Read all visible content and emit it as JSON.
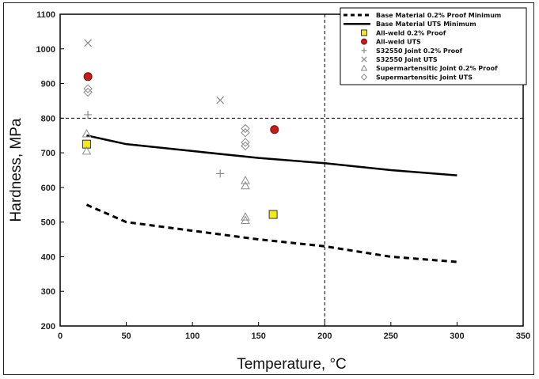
{
  "chart_data": {
    "type": "scatter",
    "xlabel": "Temperature, °C",
    "ylabel": "Hardness, MPa",
    "xlim": [
      0,
      350
    ],
    "ylim": [
      200,
      1100
    ],
    "xticks": [
      0,
      50,
      100,
      150,
      200,
      250,
      300,
      350
    ],
    "yticks": [
      200,
      300,
      400,
      500,
      600,
      700,
      800,
      900,
      1000,
      1100
    ],
    "grid": "dashed at x=200 and y=800",
    "legend_position": "top-right",
    "colors": {
      "axis": "#000000",
      "red": "#c81c1c",
      "yellow": "#f2ea1c",
      "gray": "#8a8a8a"
    },
    "series": [
      {
        "name": "Base Material 0.2% Proof Minimum",
        "kind": "line",
        "style": "dashed",
        "x": [
          20,
          50,
          100,
          150,
          200,
          250,
          300
        ],
        "y": [
          550,
          500,
          475,
          450,
          430,
          400,
          385
        ]
      },
      {
        "name": "Base Material UTS Minimum",
        "kind": "line",
        "style": "solid",
        "x": [
          20,
          50,
          100,
          150,
          200,
          250,
          300
        ],
        "y": [
          750,
          725,
          705,
          685,
          670,
          650,
          635
        ]
      },
      {
        "name": "All-weld 0.2% Proof",
        "kind": "marker",
        "marker": "square",
        "x": [
          20,
          161
        ],
        "y": [
          725,
          522
        ]
      },
      {
        "name": "All-weld UTS",
        "kind": "marker",
        "marker": "circle",
        "x": [
          21,
          162
        ],
        "y": [
          920,
          767
        ]
      },
      {
        "name": "S32550 Joint 0.2% Proof",
        "kind": "marker",
        "marker": "plus",
        "x": [
          21,
          121
        ],
        "y": [
          810,
          640
        ]
      },
      {
        "name": "S32550 Joint UTS",
        "kind": "marker",
        "marker": "x",
        "x": [
          21,
          121
        ],
        "y": [
          1017,
          852
        ]
      },
      {
        "name": "Supermartensitic Joint 0.2% Proof",
        "kind": "marker",
        "marker": "triangle",
        "x": [
          20,
          20,
          140,
          140,
          140,
          140
        ],
        "y": [
          755,
          705,
          620,
          605,
          515,
          505
        ]
      },
      {
        "name": "Supermartensitic Joint UTS",
        "kind": "marker",
        "marker": "diamond",
        "x": [
          21,
          21,
          140,
          140,
          140,
          140
        ],
        "y": [
          885,
          875,
          770,
          758,
          730,
          720
        ]
      }
    ]
  }
}
